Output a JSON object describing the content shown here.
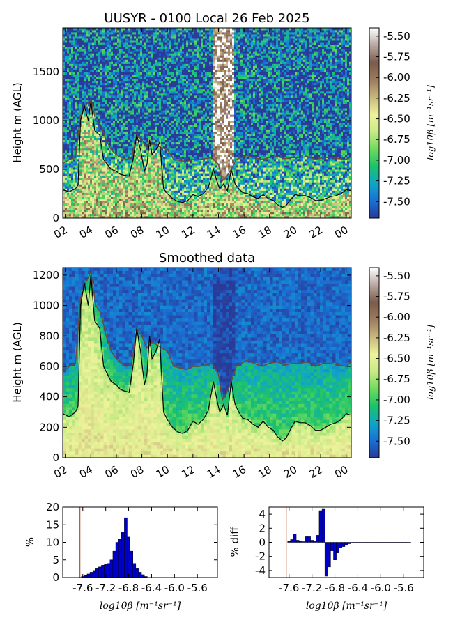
{
  "figure": {
    "title": "UUSYR - 0100 Local 26 Feb 2025"
  },
  "colors": {
    "colormap": [
      "#2a3a97",
      "#1a6fd4",
      "#0fa5c8",
      "#1cc26a",
      "#6fdb5e",
      "#c9e986",
      "#eef39a",
      "#c8b77e",
      "#9d7d5e",
      "#7a5b4c",
      "#b8a7a0",
      "#ffffff"
    ],
    "black_line": "#000000",
    "brown_line": "#6b4a3a",
    "bar_fill": "#0000cc",
    "marker_line": "#b0522a"
  },
  "chart_data": [
    {
      "type": "heatmap",
      "panel": "raw",
      "title": "UUSYR - 0100 Local 26 Feb 2025",
      "ylabel": "Height m (AGL)",
      "xlabel": "",
      "x_tick_labels": [
        "02",
        "04",
        "06",
        "08",
        "10",
        "12",
        "14",
        "16",
        "18",
        "20",
        "22",
        "00"
      ],
      "x_ticks_hours": [
        2,
        4,
        6,
        8,
        10,
        12,
        14,
        16,
        18,
        20,
        22,
        24
      ],
      "xlim_hours": [
        1.8,
        24.4
      ],
      "y_ticks": [
        0,
        500,
        1000,
        1500
      ],
      "ylim": [
        0,
        1950
      ],
      "colorbar": {
        "label": "log10β [m⁻¹sr⁻¹]",
        "ticks": [
          "-5.50",
          "-5.75",
          "-6.00",
          "-6.25",
          "-6.50",
          "-6.75",
          "-7.00",
          "-7.25",
          "-7.50"
        ],
        "tick_values": [
          -5.5,
          -5.75,
          -6.0,
          -6.25,
          -6.5,
          -6.75,
          -7.0,
          -7.25,
          -7.5
        ],
        "range": [
          -7.7,
          -5.4
        ]
      },
      "series": [
        {
          "line": "black",
          "x": [
            1.8,
            2.3,
            2.8,
            3.0,
            3.2,
            3.5,
            3.8,
            4.0,
            4.3,
            4.7,
            5.0,
            5.3,
            5.6,
            6.0,
            6.3,
            6.6,
            7.0,
            7.3,
            7.6,
            7.9,
            8.2,
            8.4,
            8.6,
            8.8,
            9.1,
            9.4,
            9.7,
            10.0,
            10.4,
            10.8,
            11.2,
            11.6,
            12.0,
            12.4,
            12.8,
            13.2,
            13.6,
            13.9,
            14.1,
            14.4,
            14.7,
            15.0,
            15.3,
            15.6,
            15.9,
            16.3,
            16.7,
            17.1,
            17.5,
            17.9,
            18.3,
            18.6,
            19.0,
            19.3,
            19.6,
            20.0,
            20.4,
            20.8,
            21.2,
            21.6,
            22.0,
            22.4,
            22.8,
            23.2,
            23.6,
            24.0,
            24.4
          ],
          "y": [
            290,
            270,
            300,
            340,
            1000,
            1150,
            1000,
            1200,
            900,
            850,
            600,
            550,
            500,
            480,
            450,
            440,
            430,
            600,
            850,
            700,
            480,
            550,
            800,
            650,
            700,
            780,
            300,
            250,
            200,
            170,
            160,
            180,
            240,
            220,
            250,
            310,
            500,
            370,
            300,
            350,
            280,
            500,
            350,
            300,
            260,
            250,
            220,
            200,
            240,
            200,
            180,
            140,
            110,
            130,
            180,
            240,
            230,
            230,
            210,
            180,
            180,
            200,
            220,
            230,
            250,
            290,
            280
          ]
        },
        {
          "line": "brown",
          "x": [
            1.8,
            2.3,
            2.8,
            3.2,
            3.6,
            4.0,
            4.4,
            4.8,
            5.2,
            5.6,
            6.0,
            6.4,
            6.8,
            7.2,
            7.6,
            8.0,
            8.4,
            8.8,
            9.2,
            9.6,
            10.0,
            10.5,
            11.0,
            11.5,
            12.0,
            12.5,
            13.0,
            13.5,
            14.0,
            14.3,
            14.6,
            15.0,
            15.4,
            15.8,
            16.2,
            16.8,
            17.4,
            18.0,
            18.6,
            19.2,
            19.8,
            20.4,
            21.0,
            21.6,
            22.2,
            22.8,
            23.4,
            24.0,
            24.4
          ],
          "y": [
            560,
            600,
            620,
            1050,
            1150,
            1220,
            1000,
            950,
            800,
            700,
            650,
            620,
            600,
            620,
            850,
            800,
            720,
            760,
            740,
            720,
            700,
            600,
            590,
            580,
            600,
            600,
            610,
            620,
            550,
            380,
            420,
            500,
            600,
            620,
            640,
            620,
            600,
            620,
            630,
            610,
            620,
            620,
            630,
            600,
            620,
            620,
            610,
            600,
            630
          ]
        }
      ]
    },
    {
      "type": "heatmap",
      "panel": "smoothed",
      "title": "Smoothed data",
      "ylabel": "Height m (AGL)",
      "xlabel": "",
      "x_tick_labels": [
        "02",
        "04",
        "06",
        "08",
        "10",
        "12",
        "14",
        "16",
        "18",
        "20",
        "22",
        "00"
      ],
      "x_ticks_hours": [
        2,
        4,
        6,
        8,
        10,
        12,
        14,
        16,
        18,
        20,
        22,
        24
      ],
      "xlim_hours": [
        1.8,
        24.4
      ],
      "y_ticks": [
        0,
        200,
        400,
        600,
        800,
        1000,
        1200
      ],
      "ylim": [
        0,
        1250
      ],
      "colorbar": {
        "label": "log10β [m⁻¹sr⁻¹]",
        "ticks": [
          "-5.50",
          "-5.75",
          "-6.00",
          "-6.25",
          "-6.50",
          "-6.75",
          "-7.00",
          "-7.25",
          "-7.50"
        ],
        "tick_values": [
          -5.5,
          -5.75,
          -6.0,
          -6.25,
          -6.5,
          -6.75,
          -7.0,
          -7.25,
          -7.5
        ],
        "range": [
          -7.7,
          -5.4
        ]
      }
    },
    {
      "type": "bar",
      "panel": "histogram",
      "title": "",
      "ylabel": "%",
      "xlabel": "log10β [m⁻¹sr⁻¹]",
      "x_tick_labels": [
        "-7.6",
        "-7.2",
        "-6.8",
        "-6.4",
        "-6.0",
        "-5.6"
      ],
      "x_ticks": [
        -7.6,
        -7.2,
        -6.8,
        -6.4,
        -6.0,
        -5.6
      ],
      "xlim": [
        -7.95,
        -5.25
      ],
      "y_ticks": [
        0,
        5,
        10,
        15,
        20
      ],
      "ylim": [
        0,
        20
      ],
      "marker_x": -7.65,
      "bin_width": 0.05,
      "x": [
        -7.6,
        -7.55,
        -7.5,
        -7.45,
        -7.4,
        -7.35,
        -7.3,
        -7.25,
        -7.2,
        -7.15,
        -7.1,
        -7.05,
        -7.0,
        -6.95,
        -6.9,
        -6.85,
        -6.8,
        -6.75,
        -6.7,
        -6.65,
        -6.6,
        -6.55,
        -6.5
      ],
      "values": [
        0.3,
        0.6,
        1.0,
        1.5,
        2.0,
        2.5,
        3.0,
        3.5,
        3.7,
        4.0,
        5.0,
        7.5,
        10.0,
        11.0,
        13.0,
        17.0,
        11.5,
        7.5,
        4.0,
        2.5,
        1.5,
        0.8,
        0.3
      ]
    },
    {
      "type": "bar",
      "panel": "percent-diff",
      "title": "",
      "ylabel": "% diff",
      "xlabel": "log10β [m⁻¹sr⁻¹]",
      "x_tick_labels": [
        "-7.6",
        "-7.2",
        "-6.8",
        "-6.4",
        "-6.0",
        "-5.6"
      ],
      "x_ticks": [
        -7.6,
        -7.2,
        -6.8,
        -6.4,
        -6.0,
        -5.6
      ],
      "xlim": [
        -7.95,
        -5.25
      ],
      "y_ticks": [
        -4,
        -2,
        0,
        2,
        4
      ],
      "ylim": [
        -5,
        5
      ],
      "marker_x": -7.65,
      "bin_width": 0.05,
      "x": [
        -7.6,
        -7.55,
        -7.5,
        -7.45,
        -7.4,
        -7.35,
        -7.3,
        -7.25,
        -7.2,
        -7.15,
        -7.1,
        -7.05,
        -7.0,
        -6.95,
        -6.9,
        -6.85,
        -6.8,
        -6.75,
        -6.7,
        -6.65,
        -6.6,
        -6.55,
        -6.5,
        -6.45,
        -6.4,
        -6.35,
        -6.3,
        -6.25,
        -6.2,
        -6.15,
        -6.1,
        -6.05,
        -6.0,
        -5.95,
        -5.9,
        -5.85,
        -5.8,
        -5.75,
        -5.7,
        -5.65,
        -5.6,
        -5.55,
        -5.5
      ],
      "values": [
        0.2,
        0.4,
        1.2,
        0.3,
        0.2,
        0.1,
        0.8,
        0.8,
        0.3,
        0.2,
        1.0,
        4.5,
        4.8,
        -4.8,
        -3.5,
        -1.2,
        -2.5,
        -1.5,
        -0.8,
        -0.6,
        -0.4,
        -0.2,
        -0.1,
        -0.05,
        -0.05,
        -0.05,
        -0.05,
        -0.05,
        -0.05,
        -0.05,
        -0.05,
        -0.05,
        -0.05,
        -0.05,
        -0.05,
        -0.05,
        -0.05,
        -0.05,
        -0.05,
        -0.05,
        -0.05,
        -0.05,
        -0.05
      ]
    }
  ]
}
